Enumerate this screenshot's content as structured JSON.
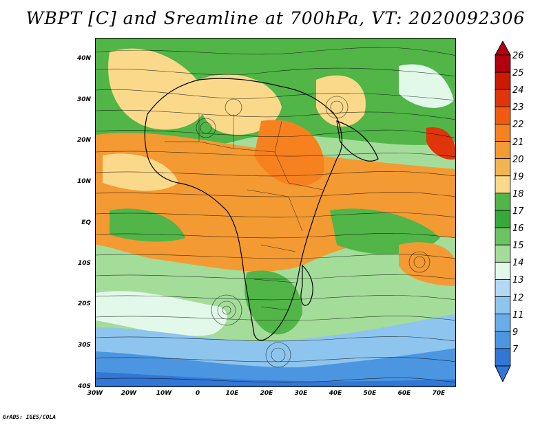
{
  "title": "WBPT [C] and Sreamline at 700hPa, VT: 2020092306",
  "credit": "GrADS: IGES/COLA",
  "y_axis_labels": [
    "40N",
    "30N",
    "20N",
    "10N",
    "EQ",
    "10S",
    "20S",
    "30S",
    "40S"
  ],
  "x_axis_labels": [
    "30W",
    "20W",
    "10W",
    "0",
    "10E",
    "20E",
    "30E",
    "40E",
    "50E",
    "60E",
    "70E"
  ],
  "colorbar": {
    "labels": [
      "26",
      "25",
      "24",
      "23",
      "22",
      "21",
      "20",
      "19",
      "18",
      "17",
      "16",
      "15",
      "14",
      "13",
      "12",
      "11",
      "9",
      "7"
    ],
    "colors": [
      "#b2000f",
      "#cc1a00",
      "#e0340a",
      "#f25a0f",
      "#f7811f",
      "#f49a33",
      "#f3b552",
      "#fbd98b",
      "#51b548",
      "#38a83a",
      "#6cc361",
      "#a4dd99",
      "#e2f9ea",
      "#b3d9f4",
      "#8ec5ef",
      "#68aee9",
      "#4c96e1",
      "#3377d6"
    ]
  },
  "palette": {
    "hot_orange": "#f49a33",
    "warm_tan": "#fbd98b",
    "green": "#51b548",
    "light_green": "#a4dd99",
    "pale": "#e2f9ea",
    "light_blue": "#8ec5ef",
    "blue": "#4c96e1",
    "deep_blue": "#3377d6"
  }
}
